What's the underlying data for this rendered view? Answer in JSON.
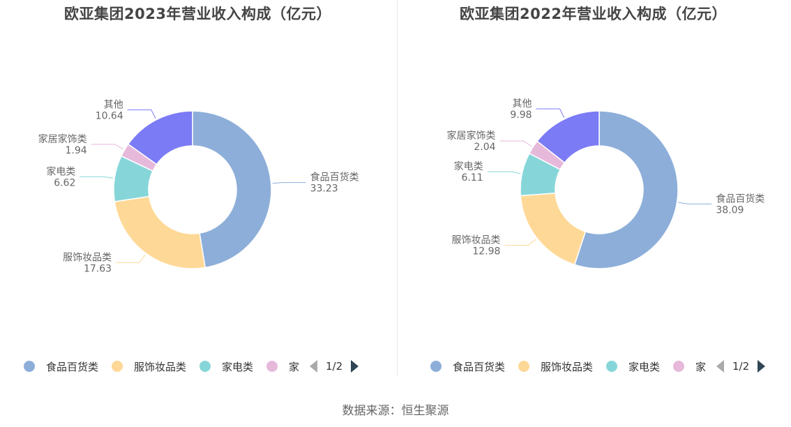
{
  "colors": [
    "#8daed9",
    "#fed896",
    "#86d6d9",
    "#e6b8da",
    "#7b7bf5"
  ],
  "pager_colors": {
    "active": "#2f4554",
    "inactive": "#aaaaaa"
  },
  "chart_data": [
    {
      "type": "pie",
      "donut": true,
      "title": "欧亚集团2023年营业收入构成（亿元）",
      "categories": [
        "食品百货类",
        "服饰妆品类",
        "家电类",
        "家居家饰类",
        "其他"
      ],
      "values": [
        33.23,
        17.63,
        6.62,
        1.94,
        10.64
      ],
      "value_labels": [
        "33.23",
        "17.63",
        "6.62",
        "1.94",
        "10.64"
      ],
      "legend": {
        "placement": "bottom",
        "visible_items": [
          "食品百货类",
          "服饰妆品类",
          "家电类",
          "家"
        ],
        "page": "1/2"
      }
    },
    {
      "type": "pie",
      "donut": true,
      "title": "欧亚集团2022年营业收入构成（亿元）",
      "categories": [
        "食品百货类",
        "服饰妆品类",
        "家电类",
        "家居家饰类",
        "其他"
      ],
      "values": [
        38.09,
        12.98,
        6.11,
        2.04,
        9.98
      ],
      "value_labels": [
        "38.09",
        "12.98",
        "6.11",
        "2.04",
        "9.98"
      ],
      "legend": {
        "placement": "bottom",
        "visible_items": [
          "食品百货类",
          "服饰妆品类",
          "家电类",
          "家"
        ],
        "page": "1/2"
      }
    }
  ],
  "source": "数据来源：恒生聚源"
}
